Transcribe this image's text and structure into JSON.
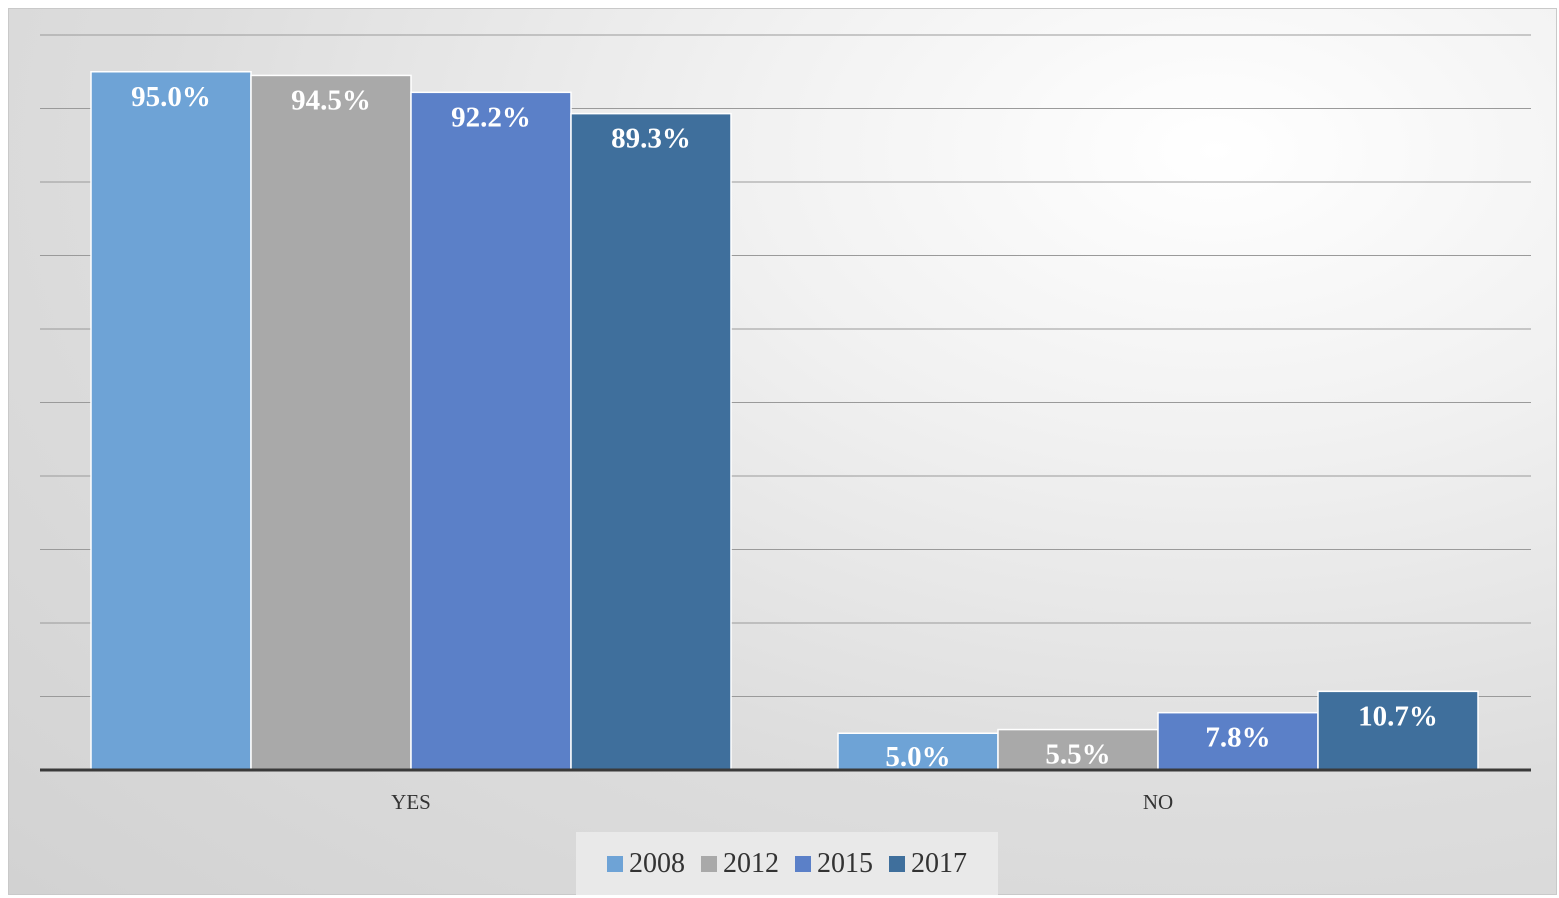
{
  "chart_data": {
    "type": "bar",
    "categories": [
      "YES",
      "NO"
    ],
    "series": [
      {
        "name": "2008",
        "color": "#6ea3d6",
        "values": [
          95.0,
          5.0
        ],
        "labels": [
          "95.0%",
          "5.0%"
        ]
      },
      {
        "name": "2012",
        "color": "#a9a9a9",
        "values": [
          94.5,
          5.5
        ],
        "labels": [
          "94.5%",
          "5.5%"
        ]
      },
      {
        "name": "2015",
        "color": "#5b80c8",
        "values": [
          92.2,
          7.8
        ],
        "labels": [
          "92.2%",
          "7.8%"
        ]
      },
      {
        "name": "2017",
        "color": "#3f6f9c",
        "values": [
          89.3,
          10.7
        ],
        "labels": [
          "89.3%",
          "10.7%"
        ]
      }
    ],
    "ylim": [
      0,
      100
    ],
    "grid": true,
    "legend_position": "bottom",
    "title": "",
    "xlabel": "",
    "ylabel": ""
  }
}
